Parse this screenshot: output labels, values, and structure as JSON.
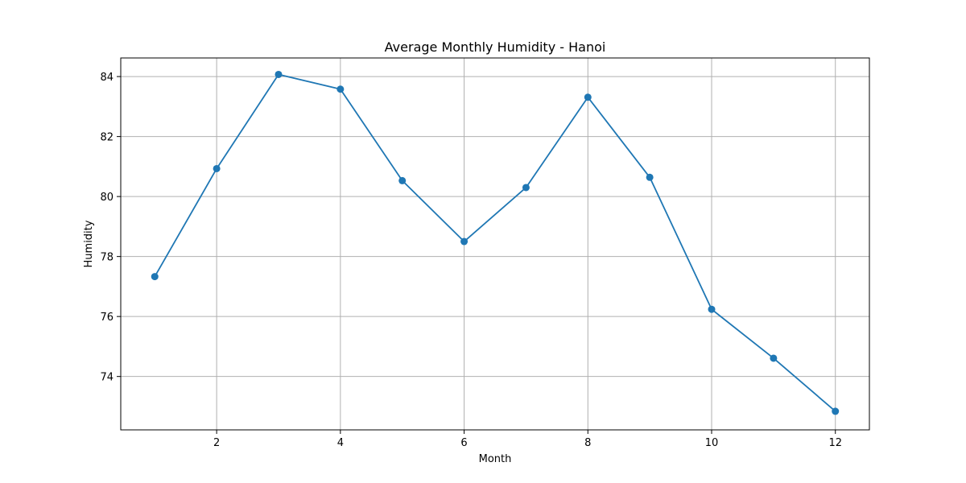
{
  "chart_data": {
    "type": "line",
    "title": "Average Monthly Humidity - Hanoi",
    "xlabel": "Month",
    "ylabel": "Humidity",
    "x": [
      1,
      2,
      3,
      4,
      5,
      6,
      7,
      8,
      9,
      10,
      11,
      12
    ],
    "series": [
      {
        "values": [
          77.33,
          80.93,
          84.07,
          83.58,
          80.53,
          78.5,
          80.3,
          83.31,
          80.64,
          76.24,
          74.61,
          72.84
        ],
        "color": "#1f77b4",
        "marker": "circle"
      }
    ],
    "xlim": [
      0.45,
      12.55
    ],
    "ylim": [
      72.22,
      84.62
    ],
    "xticks": [
      2,
      4,
      6,
      8,
      10,
      12
    ],
    "yticks": [
      74,
      76,
      78,
      80,
      82,
      84
    ],
    "grid": true,
    "legend": "none"
  }
}
